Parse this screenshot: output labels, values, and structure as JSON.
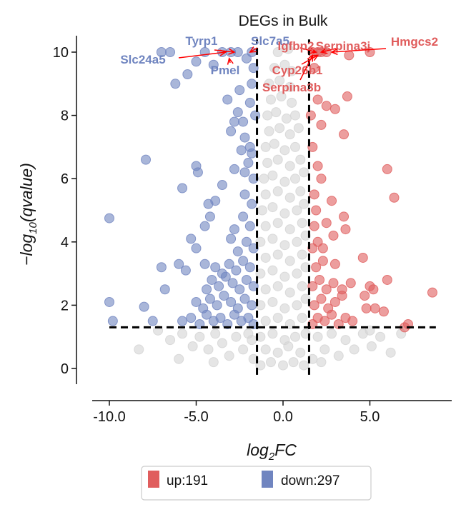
{
  "chart_data": {
    "type": "scatter",
    "title": "DEGs in Bulk",
    "xlabel": "log2FC",
    "ylabel": "-log10(qvalue)",
    "xlim": [
      -10.95,
      9.6
    ],
    "ylim": [
      -0.5,
      10.5
    ],
    "xticks": [
      -10,
      -5,
      0,
      5
    ],
    "xtick_labels": [
      "-10.0",
      "-5.0",
      "0.0",
      "5.0"
    ],
    "yticks": [
      0,
      2,
      4,
      6,
      8,
      10
    ],
    "ytick_labels": [
      "0",
      "2",
      "4",
      "6",
      "8",
      "10"
    ],
    "grid": false,
    "thresholds": {
      "log2fc": 1.5,
      "neg_log10_q": 1.3
    },
    "colors": {
      "up": "#e05d5d",
      "down": "#7085c0",
      "ns": "#d3d3d3",
      "threshold_line": "#000000"
    },
    "legend": {
      "placement": "bottom",
      "entries": [
        {
          "label": "up:191",
          "color": "#e05d5d"
        },
        {
          "label": "down:297",
          "color": "#7085c0"
        }
      ]
    },
    "series": [
      {
        "group": "ns",
        "points": [
          [
            -1.3,
            0.1
          ],
          [
            -0.7,
            0.2
          ],
          [
            0,
            0.1
          ],
          [
            0.6,
            0.2
          ],
          [
            1.2,
            0.1
          ],
          [
            -1.0,
            0.6
          ],
          [
            -0.3,
            0.5
          ],
          [
            0.3,
            0.7
          ],
          [
            1.0,
            0.5
          ],
          [
            -1.3,
            1.0
          ],
          [
            -0.6,
            1.1
          ],
          [
            0.1,
            0.9
          ],
          [
            0.7,
            1.0
          ],
          [
            1.3,
            1.1
          ],
          [
            -1.0,
            1.5
          ],
          [
            -0.3,
            1.6
          ],
          [
            0.4,
            1.4
          ],
          [
            1.1,
            1.6
          ],
          [
            -1.3,
            2.0
          ],
          [
            -0.6,
            2.1
          ],
          [
            0.1,
            1.9
          ],
          [
            0.8,
            2.0
          ],
          [
            1.3,
            2.2
          ],
          [
            -1.0,
            2.5
          ],
          [
            -0.3,
            2.6
          ],
          [
            0.4,
            2.4
          ],
          [
            1.1,
            2.6
          ],
          [
            -1.3,
            3.0
          ],
          [
            -0.6,
            3.1
          ],
          [
            0.1,
            2.9
          ],
          [
            0.8,
            3.0
          ],
          [
            1.3,
            3.2
          ],
          [
            -1.0,
            3.5
          ],
          [
            -0.3,
            3.6
          ],
          [
            0.4,
            3.4
          ],
          [
            1.1,
            3.6
          ],
          [
            -1.3,
            4.0
          ],
          [
            -0.6,
            4.1
          ],
          [
            0.1,
            3.9
          ],
          [
            0.8,
            4.0
          ],
          [
            1.3,
            4.2
          ],
          [
            -1.0,
            4.5
          ],
          [
            -0.3,
            4.6
          ],
          [
            0.4,
            4.4
          ],
          [
            1.1,
            4.6
          ],
          [
            -1.2,
            5.0
          ],
          [
            -0.6,
            5.1
          ],
          [
            0.1,
            4.9
          ],
          [
            0.8,
            5.0
          ],
          [
            1.2,
            5.2
          ],
          [
            -1.0,
            5.5
          ],
          [
            -0.3,
            5.6
          ],
          [
            0.4,
            5.4
          ],
          [
            1.0,
            5.6
          ],
          [
            -1.1,
            6.0
          ],
          [
            -0.6,
            6.1
          ],
          [
            0.1,
            5.9
          ],
          [
            0.7,
            6.0
          ],
          [
            1.2,
            6.2
          ],
          [
            -0.9,
            6.5
          ],
          [
            -0.3,
            6.6
          ],
          [
            0.4,
            6.4
          ],
          [
            1.0,
            6.6
          ],
          [
            -1.0,
            7.0
          ],
          [
            -0.5,
            7.1
          ],
          [
            0.1,
            6.9
          ],
          [
            0.7,
            7.0
          ],
          [
            -0.8,
            7.5
          ],
          [
            -0.2,
            7.6
          ],
          [
            0.4,
            7.4
          ],
          [
            0.9,
            7.6
          ],
          [
            -0.9,
            8.0
          ],
          [
            -0.4,
            8.1
          ],
          [
            0.2,
            7.9
          ],
          [
            0.7,
            8.0
          ],
          [
            -0.7,
            8.5
          ],
          [
            -0.1,
            8.6
          ],
          [
            0.5,
            8.4
          ],
          [
            -0.8,
            9.0
          ],
          [
            -0.2,
            9.1
          ],
          [
            0.4,
            8.9
          ],
          [
            -0.5,
            9.5
          ],
          [
            0.1,
            9.6
          ],
          [
            0.5,
            9.4
          ],
          [
            -0.3,
            10.0
          ],
          [
            0.3,
            10.1
          ],
          [
            -7.2,
            1.2
          ],
          [
            -6.5,
            0.9
          ],
          [
            -5.8,
            1.1
          ],
          [
            -5.2,
            0.7
          ],
          [
            -4.8,
            1.0
          ],
          [
            -4.3,
            0.6
          ],
          [
            -3.9,
            1.1
          ],
          [
            -3.5,
            0.8
          ],
          [
            -3.1,
            0.4
          ],
          [
            -2.7,
            1.0
          ],
          [
            -2.3,
            0.6
          ],
          [
            -2.0,
            1.1
          ],
          [
            -1.7,
            0.3
          ],
          [
            -8.3,
            0.6
          ],
          [
            1.7,
            0.3
          ],
          [
            2.0,
            1.0
          ],
          [
            2.4,
            0.6
          ],
          [
            2.8,
            1.1
          ],
          [
            3.2,
            0.4
          ],
          [
            3.6,
            0.9
          ],
          [
            4.1,
            0.6
          ],
          [
            4.6,
            1.1
          ],
          [
            5.1,
            0.7
          ],
          [
            5.6,
            1.0
          ],
          [
            6.2,
            0.5
          ],
          [
            6.8,
            1.1
          ],
          [
            5.0,
            1.2
          ],
          [
            -1.8,
            0.9
          ],
          [
            -6.0,
            0.3
          ],
          [
            -4.0,
            0.2
          ],
          [
            2.2,
            0.2
          ]
        ]
      },
      {
        "group": "down",
        "points": [
          [
            -10,
            4.75
          ],
          [
            -10,
            2.1
          ],
          [
            -9.8,
            1.5
          ],
          [
            -8,
            1.95
          ],
          [
            -7.5,
            1.5
          ],
          [
            -7.9,
            6.6
          ],
          [
            -7,
            3.2
          ],
          [
            -6.8,
            2.5
          ],
          [
            -7,
            10
          ],
          [
            -6.5,
            10
          ],
          [
            -6.2,
            9
          ],
          [
            -5.5,
            9.3
          ],
          [
            -5.8,
            5.7
          ],
          [
            -5,
            6.4
          ],
          [
            -4.9,
            6.2
          ],
          [
            -5.3,
            4.1
          ],
          [
            -6,
            3.3
          ],
          [
            -5.6,
            3.1
          ],
          [
            -5,
            3.8
          ],
          [
            -4.5,
            4.5
          ],
          [
            -4.2,
            4.8
          ],
          [
            -4.3,
            5.2
          ],
          [
            -3.9,
            5.3
          ],
          [
            -3.5,
            5.8
          ],
          [
            -3,
            7.5
          ],
          [
            -2.8,
            7.8
          ],
          [
            -2.6,
            8.1
          ],
          [
            -2.3,
            7.8
          ],
          [
            -2.2,
            7.3
          ],
          [
            -2.4,
            6.9
          ],
          [
            -2.8,
            6.3
          ],
          [
            -2.2,
            6.2
          ],
          [
            -2,
            6.5
          ],
          [
            -1.9,
            7
          ],
          [
            -1.8,
            6.8
          ],
          [
            -3.2,
            8.5
          ],
          [
            -2.5,
            8.8
          ],
          [
            -1.8,
            9
          ],
          [
            -1.7,
            9.5
          ],
          [
            -4,
            9.6
          ],
          [
            -3.5,
            10
          ],
          [
            -1.7,
            1.4
          ],
          [
            -2.0,
            1.6
          ],
          [
            -2.4,
            1.5
          ],
          [
            -2.8,
            1.7
          ],
          [
            -3.2,
            1.4
          ],
          [
            -3.6,
            1.6
          ],
          [
            -4.0,
            1.5
          ],
          [
            -4.4,
            1.7
          ],
          [
            -4.8,
            1.4
          ],
          [
            -5.3,
            1.6
          ],
          [
            -5.8,
            1.5
          ],
          [
            -1.8,
            2.0
          ],
          [
            -2.2,
            2.2
          ],
          [
            -2.6,
            1.9
          ],
          [
            -3.0,
            2.1
          ],
          [
            -3.4,
            2.3
          ],
          [
            -3.8,
            2.0
          ],
          [
            -4.2,
            2.2
          ],
          [
            -4.6,
            1.9
          ],
          [
            -5.0,
            2.1
          ],
          [
            -1.7,
            2.6
          ],
          [
            -2.1,
            2.8
          ],
          [
            -2.5,
            2.5
          ],
          [
            -2.9,
            2.7
          ],
          [
            -3.3,
            2.9
          ],
          [
            -3.7,
            2.6
          ],
          [
            -4.1,
            2.8
          ],
          [
            -4.4,
            2.5
          ],
          [
            -1.9,
            3.2
          ],
          [
            -2.3,
            3.4
          ],
          [
            -2.7,
            3.1
          ],
          [
            -3.1,
            3.3
          ],
          [
            -3.5,
            3.0
          ],
          [
            -3.9,
            3.2
          ],
          [
            -4.5,
            3.3
          ],
          [
            -1.7,
            3.8
          ],
          [
            -2.1,
            4.0
          ],
          [
            -2.6,
            3.7
          ],
          [
            -3.0,
            4.1
          ],
          [
            -1.9,
            4.5
          ],
          [
            -2.3,
            4.8
          ],
          [
            -2.8,
            4.4
          ],
          [
            -1.8,
            5.2
          ],
          [
            -2.2,
            5.5
          ],
          [
            -1.7,
            6.0
          ],
          [
            -1.6,
            8.0
          ],
          [
            -1.9,
            8.4
          ],
          [
            -2.1,
            9.8
          ],
          [
            -2.6,
            10
          ],
          [
            -3.0,
            10
          ],
          [
            -1.8,
            10
          ],
          [
            -4.5,
            10
          ],
          [
            -5.0,
            9.7
          ]
        ]
      },
      {
        "group": "up",
        "points": [
          [
            2,
            8.5
          ],
          [
            2.5,
            8.3
          ],
          [
            3,
            8.2
          ],
          [
            3.7,
            8.6
          ],
          [
            3.5,
            7.4
          ],
          [
            2.2,
            7.7
          ],
          [
            6,
            6.3
          ],
          [
            6.4,
            5.4
          ],
          [
            2,
            6.4
          ],
          [
            2.2,
            6
          ],
          [
            1.8,
            5.5
          ],
          [
            2.8,
            5.3
          ],
          [
            3.5,
            4.8
          ],
          [
            3.6,
            4.4
          ],
          [
            2.5,
            4.6
          ],
          [
            2.9,
            4.2
          ],
          [
            2,
            4
          ],
          [
            2.3,
            3.8
          ],
          [
            3,
            3.3
          ],
          [
            4.6,
            3.5
          ],
          [
            5,
            2.6
          ],
          [
            5.2,
            2.5
          ],
          [
            4.7,
            2.3
          ],
          [
            6,
            2.8
          ],
          [
            8.6,
            2.4
          ],
          [
            7.2,
            1.4
          ],
          [
            7,
            1.3
          ],
          [
            5.8,
            1.8
          ],
          [
            5.3,
            1.9
          ],
          [
            4.8,
            1.9
          ],
          [
            3.9,
            2.7
          ],
          [
            3.4,
            2.5
          ],
          [
            2.5,
            10
          ],
          [
            5,
            10
          ],
          [
            3.8,
            9.9
          ],
          [
            2.2,
            10
          ],
          [
            1.7,
            1.4
          ],
          [
            2.0,
            1.6
          ],
          [
            2.4,
            1.5
          ],
          [
            2.8,
            1.7
          ],
          [
            3.2,
            1.4
          ],
          [
            3.6,
            1.6
          ],
          [
            4.0,
            1.5
          ],
          [
            1.8,
            2.0
          ],
          [
            2.2,
            2.2
          ],
          [
            2.6,
            1.9
          ],
          [
            3.0,
            2.1
          ],
          [
            3.4,
            2.3
          ],
          [
            1.7,
            2.6
          ],
          [
            2.1,
            2.8
          ],
          [
            2.5,
            2.5
          ],
          [
            2.9,
            2.7
          ],
          [
            1.9,
            3.2
          ],
          [
            2.3,
            3.4
          ],
          [
            1.7,
            3.8
          ],
          [
            1.8,
            4.5
          ],
          [
            1.9,
            5.0
          ],
          [
            1.7,
            7.0
          ],
          [
            1.6,
            8.0
          ],
          [
            1.8,
            9.5
          ],
          [
            2.0,
            10
          ],
          [
            1.7,
            10
          ]
        ]
      }
    ],
    "annotations": [
      {
        "label": "Tyrp1",
        "group": "down",
        "target": [
          -2.8,
          10
        ]
      },
      {
        "label": "Slc24a5",
        "group": "down",
        "target": [
          -3.3,
          10
        ]
      },
      {
        "label": "Slc7a5",
        "group": "down",
        "target": [
          -1.9,
          10
        ]
      },
      {
        "label": "Pmel",
        "group": "down",
        "target": [
          -3.1,
          9.8
        ]
      },
      {
        "label": "Igfbp2",
        "group": "up",
        "target": [
          1.9,
          10
        ]
      },
      {
        "label": "Serpina3j",
        "group": "up",
        "target": [
          2.2,
          10
        ]
      },
      {
        "label": "Hmgcs2",
        "group": "up",
        "target": [
          2.8,
          10
        ]
      },
      {
        "label": "Cyp26b1",
        "group": "up",
        "target": [
          2.0,
          9.9
        ]
      },
      {
        "label": "Serpina3b",
        "group": "up",
        "target": [
          1.7,
          9.9
        ]
      }
    ]
  }
}
